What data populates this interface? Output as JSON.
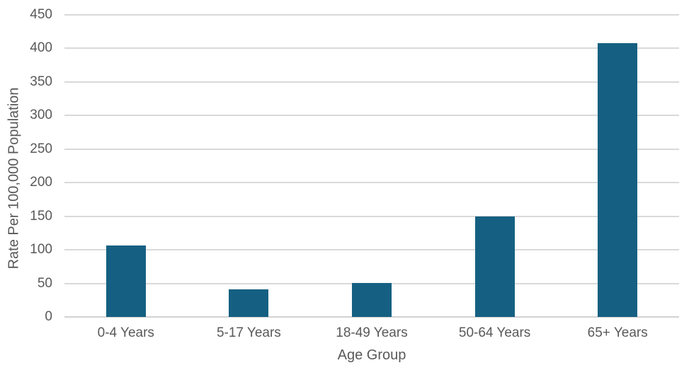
{
  "chart_data": {
    "type": "bar",
    "title": "",
    "categories": [
      "0-4 Years",
      "5-17 Years",
      "18-49 Years",
      "50-64 Years",
      "65+ Years"
    ],
    "values": [
      106,
      41,
      51,
      150,
      408
    ],
    "xlabel": "Age Group",
    "ylabel": "Rate Per 100,000 Population",
    "ylim": [
      0,
      450
    ],
    "yticks": [
      0,
      50,
      100,
      150,
      200,
      250,
      300,
      350,
      400,
      450
    ],
    "grid": true,
    "legend": "none",
    "colors": {
      "bar": "#156082",
      "gridline": "#D9D9D9",
      "axis_line": "#D2D2D2",
      "text": "#595959",
      "background": "#FFFFFF"
    }
  }
}
